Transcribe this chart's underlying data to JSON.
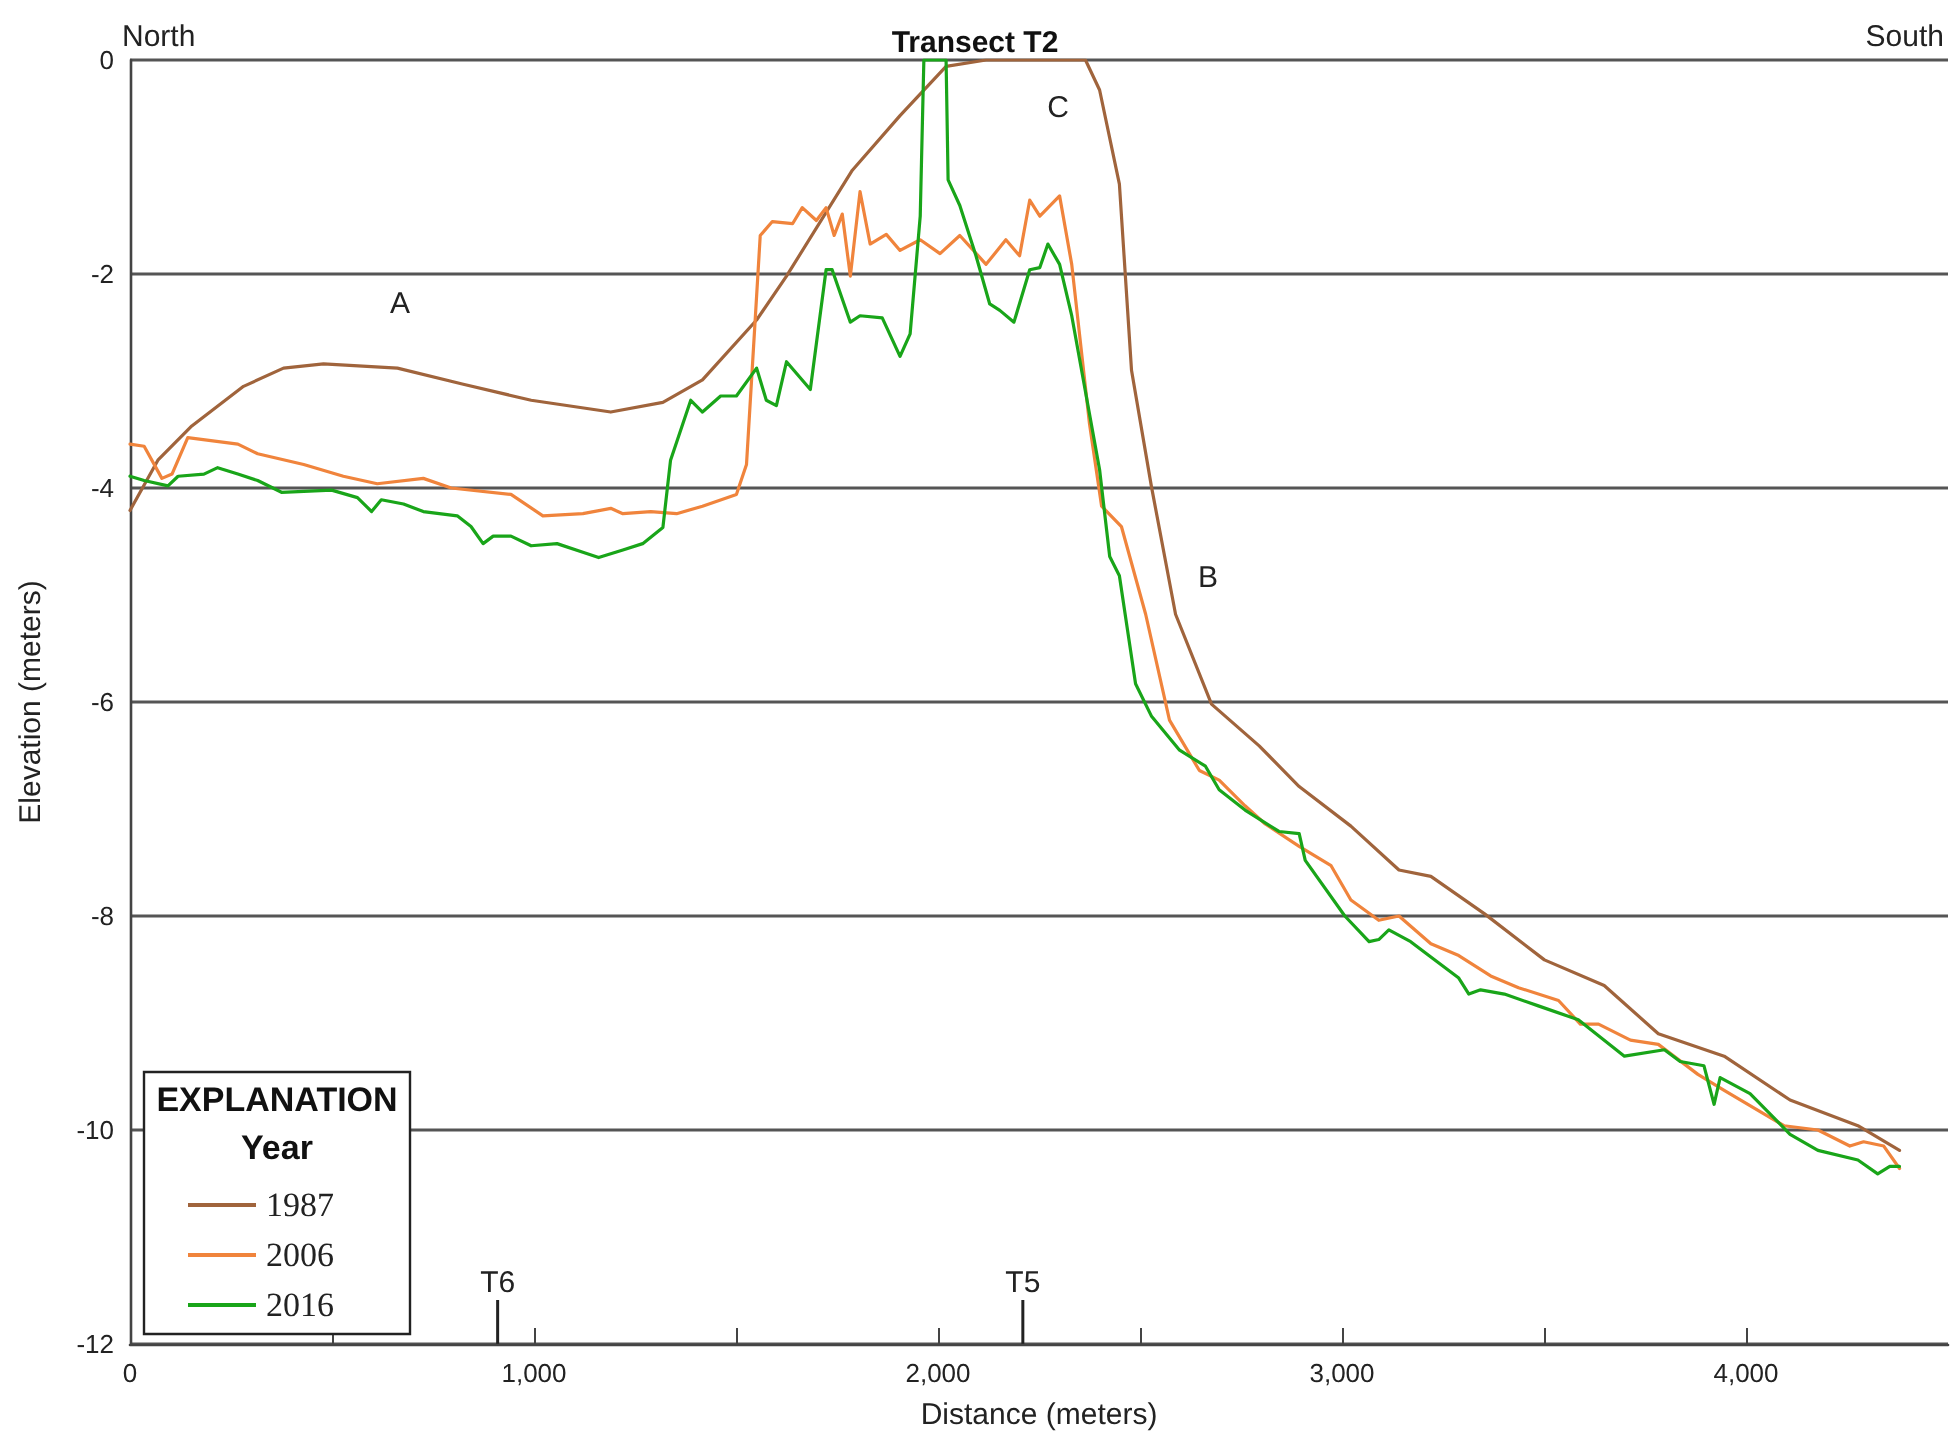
{
  "chart_data": {
    "type": "line",
    "title": "Transect T2",
    "xlabel": "Distance (meters)",
    "ylabel": "Elevation (meters)",
    "legend_title": "EXPLANATION\nYear",
    "annotations": [
      "North",
      "South",
      "A",
      "B",
      "C"
    ],
    "ref_lines": [
      {
        "axis": "x",
        "value": 910,
        "label": "T6"
      },
      {
        "axis": "x",
        "value": 2210,
        "label": "T5"
      }
    ],
    "xlim": [
      0,
      4500
    ],
    "ylim": [
      -12,
      0
    ],
    "xticks": [
      0,
      {
        "value": 500,
        "label": null
      },
      {
        "value": 1000,
        "label": "1,000"
      },
      {
        "value": 1500,
        "label": null
      },
      {
        "value": 2000,
        "label": "2,000"
      },
      {
        "value": 2500,
        "label": null
      },
      {
        "value": 3000,
        "label": "3,000"
      },
      {
        "value": 3500,
        "label": null
      },
      {
        "value": 4000,
        "label": "4,000"
      }
    ],
    "yticks": [
      -12,
      -10,
      -8,
      -6,
      -4,
      -2,
      0
    ],
    "grid": "y",
    "legend": "bottom left",
    "line_style": "solid",
    "marker": "none",
    "series": [
      {
        "name": "1987",
        "color": "#a0643c",
        "x": [
          0,
          69,
          153,
          281,
          380,
          479,
          662,
          825,
          993,
          1190,
          1319,
          1417,
          1551,
          1625,
          1788,
          1906,
          2020,
          2119,
          2365,
          2400,
          2449,
          2479,
          2528,
          2588,
          2677,
          2795,
          2894,
          3022,
          3141,
          3220,
          3353,
          3501,
          3649,
          3783,
          3946,
          4109,
          4277,
          4380
        ],
        "values": [
          -4.21,
          -3.74,
          -3.42,
          -3.05,
          -2.88,
          -2.84,
          -2.88,
          -3.03,
          -3.18,
          -3.29,
          -3.2,
          -2.99,
          -2.43,
          -2.02,
          -1.03,
          -0.52,
          -0.06,
          0,
          0,
          -0.28,
          -1.16,
          -2.9,
          -3.98,
          -5.18,
          -6.02,
          -6.41,
          -6.79,
          -7.16,
          -7.57,
          -7.63,
          -7.98,
          -8.41,
          -8.65,
          -9.1,
          -9.31,
          -9.72,
          -9.96,
          -10.19
        ]
      },
      {
        "name": "2006",
        "color": "#f0843c",
        "x": [
          0,
          35,
          79,
          104,
          143,
          267,
          316,
          430,
          528,
          612,
          726,
          795,
          943,
          1022,
          1121,
          1190,
          1220,
          1289,
          1353,
          1417,
          1501,
          1526,
          1560,
          1590,
          1640,
          1664,
          1699,
          1723,
          1743,
          1763,
          1783,
          1807,
          1832,
          1872,
          1906,
          1956,
          2005,
          2054,
          2119,
          2168,
          2202,
          2227,
          2252,
          2301,
          2331,
          2375,
          2405,
          2454,
          2514,
          2573,
          2647,
          2696,
          2760,
          2810,
          2894,
          2973,
          3022,
          3091,
          3141,
          3220,
          3289,
          3368,
          3437,
          3536,
          3590,
          3635,
          3714,
          3783,
          3881,
          3946,
          4094,
          4178,
          4257,
          4291,
          4341,
          4380
        ],
        "values": [
          -3.59,
          -3.61,
          -3.91,
          -3.87,
          -3.53,
          -3.59,
          -3.68,
          -3.78,
          -3.89,
          -3.96,
          -3.91,
          -4.0,
          -4.06,
          -4.26,
          -4.24,
          -4.19,
          -4.24,
          -4.22,
          -4.24,
          -4.17,
          -4.06,
          -3.78,
          -1.64,
          -1.51,
          -1.53,
          -1.38,
          -1.5,
          -1.38,
          -1.64,
          -1.44,
          -2.02,
          -1.23,
          -1.72,
          -1.63,
          -1.78,
          -1.68,
          -1.81,
          -1.64,
          -1.91,
          -1.68,
          -1.83,
          -1.31,
          -1.46,
          -1.27,
          -1.91,
          -3.4,
          -4.17,
          -4.36,
          -5.18,
          -6.17,
          -6.64,
          -6.73,
          -6.97,
          -7.14,
          -7.35,
          -7.53,
          -7.85,
          -8.04,
          -8.0,
          -8.26,
          -8.37,
          -8.56,
          -8.67,
          -8.79,
          -9.01,
          -9.01,
          -9.16,
          -9.2,
          -9.48,
          -9.63,
          -9.96,
          -10.0,
          -10.15,
          -10.11,
          -10.15,
          -10.36
        ]
      },
      {
        "name": "2016",
        "color": "#19a519",
        "x": [
          0,
          35,
          94,
          119,
          183,
          217,
          267,
          316,
          375,
          499,
          563,
          598,
          622,
          677,
          726,
          810,
          844,
          874,
          899,
          943,
          993,
          1057,
          1121,
          1160,
          1220,
          1269,
          1319,
          1338,
          1388,
          1417,
          1462,
          1501,
          1551,
          1575,
          1600,
          1625,
          1684,
          1723,
          1738,
          1783,
          1807,
          1862,
          1906,
          1931,
          1956,
          1965,
          2020,
          2025,
          2054,
          2094,
          2128,
          2153,
          2188,
          2227,
          2252,
          2272,
          2301,
          2331,
          2400,
          2425,
          2449,
          2489,
          2528,
          2598,
          2662,
          2696,
          2760,
          2844,
          2894,
          2909,
          3007,
          3067,
          3091,
          3116,
          3170,
          3215,
          3289,
          3314,
          3343,
          3402,
          3486,
          3585,
          3699,
          3798,
          3837,
          3896,
          3921,
          3936,
          4010,
          4109,
          4178,
          4277,
          4326,
          4356,
          4380
        ],
        "values": [
          -3.89,
          -3.93,
          -3.98,
          -3.89,
          -3.87,
          -3.81,
          -3.87,
          -3.93,
          -4.04,
          -4.02,
          -4.09,
          -4.22,
          -4.11,
          -4.15,
          -4.22,
          -4.26,
          -4.36,
          -4.52,
          -4.45,
          -4.45,
          -4.54,
          -4.52,
          -4.6,
          -4.65,
          -4.58,
          -4.52,
          -4.37,
          -3.74,
          -3.18,
          -3.29,
          -3.14,
          -3.14,
          -2.88,
          -3.18,
          -3.23,
          -2.82,
          -3.08,
          -1.96,
          -1.96,
          -2.45,
          -2.39,
          -2.41,
          -2.77,
          -2.56,
          -1.46,
          0,
          0,
          -1.12,
          -1.36,
          -1.83,
          -2.28,
          -2.34,
          -2.45,
          -1.96,
          -1.94,
          -1.72,
          -1.91,
          -2.39,
          -3.83,
          -4.64,
          -4.82,
          -5.83,
          -6.13,
          -6.45,
          -6.6,
          -6.82,
          -7.01,
          -7.21,
          -7.23,
          -7.48,
          -8.0,
          -8.24,
          -8.22,
          -8.13,
          -8.24,
          -8.37,
          -8.58,
          -8.73,
          -8.69,
          -8.73,
          -8.84,
          -8.97,
          -9.31,
          -9.25,
          -9.36,
          -9.4,
          -9.76,
          -9.51,
          -9.66,
          -10.04,
          -10.19,
          -10.28,
          -10.41,
          -10.34,
          -10.34
        ]
      }
    ]
  }
}
